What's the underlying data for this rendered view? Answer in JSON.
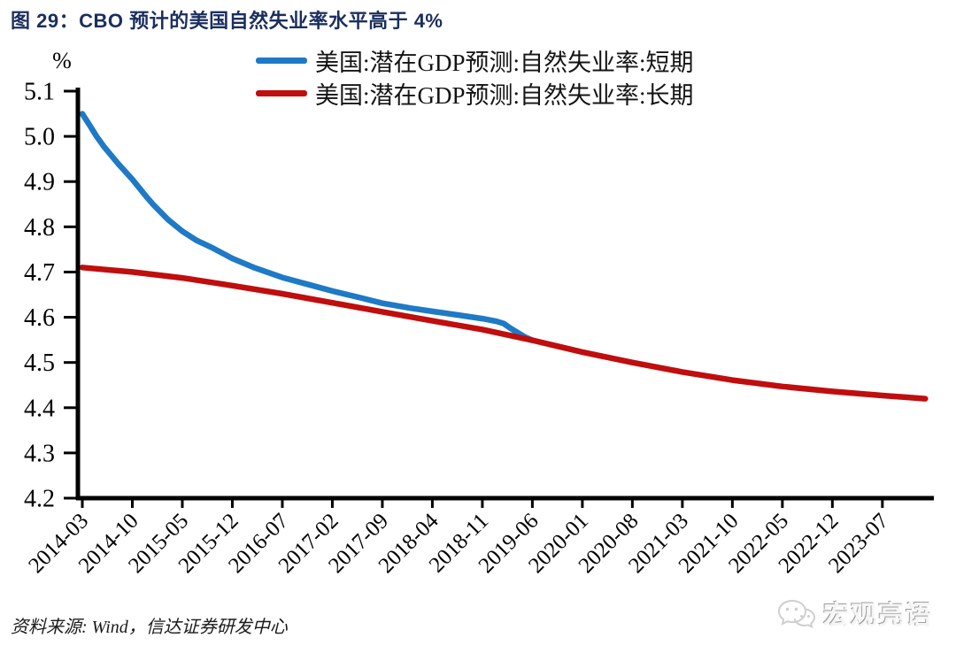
{
  "figure": {
    "title_color": "#1B2F5E",
    "source": "资料来源: Wind，信达证券研发中心",
    "watermark_text": "宏观亮语",
    "watermark_icon": "wechat-icon"
  },
  "chart_data": {
    "type": "line",
    "title": "图 29：CBO 预计的美国自然失业率水平高于 4%",
    "xlabel": "",
    "ylabel": "%",
    "ylim": [
      4.2,
      5.1
    ],
    "y_ticks": [
      "5.1",
      "5.0",
      "4.9",
      "4.8",
      "4.7",
      "4.6",
      "4.5",
      "4.4",
      "4.3",
      "4.2"
    ],
    "categories": [
      "2014-03",
      "2014-10",
      "2015-05",
      "2015-12",
      "2016-07",
      "2017-02",
      "2017-09",
      "2018-04",
      "2018-11",
      "2019-06",
      "2020-01",
      "2020-08",
      "2021-03",
      "2021-10",
      "2022-05",
      "2022-12",
      "2023-07"
    ],
    "grid": false,
    "legend_position": "top",
    "axis_color": "#000000",
    "series": [
      {
        "name": "美国:潜在GDP预测:自然失业率:短期",
        "color": "#1E7AC6",
        "points": [
          [
            "2014-03",
            5.05
          ],
          [
            "2014-04",
            5.025
          ],
          [
            "2014-05",
            5.0
          ],
          [
            "2014-06",
            4.978
          ],
          [
            "2014-08",
            4.94
          ],
          [
            "2014-10",
            4.905
          ],
          [
            "2014-12",
            4.866
          ],
          [
            "2015-01",
            4.848
          ],
          [
            "2015-03",
            4.816
          ],
          [
            "2015-05",
            4.79
          ],
          [
            "2015-07",
            4.77
          ],
          [
            "2015-09",
            4.755
          ],
          [
            "2015-12",
            4.73
          ],
          [
            "2016-03",
            4.71
          ],
          [
            "2016-07",
            4.688
          ],
          [
            "2016-11",
            4.671
          ],
          [
            "2017-02",
            4.658
          ],
          [
            "2017-06",
            4.643
          ],
          [
            "2017-09",
            4.631
          ],
          [
            "2018-01",
            4.62
          ],
          [
            "2018-04",
            4.613
          ],
          [
            "2018-08",
            4.604
          ],
          [
            "2018-11",
            4.597
          ],
          [
            "2019-01",
            4.591
          ],
          [
            "2019-02",
            4.586
          ],
          [
            "2019-03",
            4.575
          ],
          [
            "2019-05",
            4.556
          ],
          [
            "2019-06",
            4.549
          ]
        ]
      },
      {
        "name": "美国:潜在GDP预测:自然失业率:长期",
        "color": "#C00D0D",
        "points": [
          [
            "2014-03",
            4.71
          ],
          [
            "2014-10",
            4.7
          ],
          [
            "2015-05",
            4.687
          ],
          [
            "2015-12",
            4.67
          ],
          [
            "2016-07",
            4.652
          ],
          [
            "2017-02",
            4.632
          ],
          [
            "2017-09",
            4.612
          ],
          [
            "2018-04",
            4.592
          ],
          [
            "2018-11",
            4.573
          ],
          [
            "2019-06",
            4.549
          ],
          [
            "2020-01",
            4.523
          ],
          [
            "2020-08",
            4.5
          ],
          [
            "2021-03",
            4.479
          ],
          [
            "2021-10",
            4.461
          ],
          [
            "2022-05",
            4.447
          ],
          [
            "2022-12",
            4.436
          ],
          [
            "2023-07",
            4.427
          ],
          [
            "2024-01",
            4.42
          ]
        ]
      }
    ]
  }
}
